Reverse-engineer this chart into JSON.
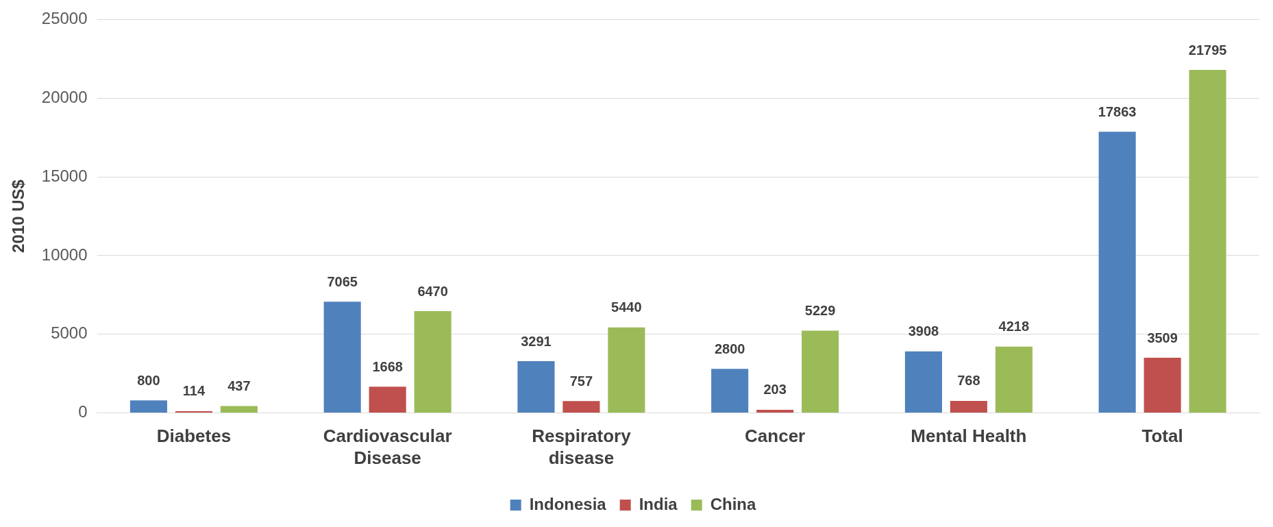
{
  "chart_data": {
    "type": "bar",
    "ylabel": "2010 US$",
    "categories": [
      "Diabetes",
      "Cardiovascular Disease",
      "Respiratory disease",
      "Cancer",
      "Mental Health",
      "Total"
    ],
    "series": [
      {
        "name": "Indonesia",
        "color": "#4f81bd",
        "values": [
          800,
          7065,
          3291,
          2800,
          3908,
          17863
        ]
      },
      {
        "name": "India",
        "color": "#c0504d",
        "values": [
          114,
          1668,
          757,
          203,
          768,
          3509
        ]
      },
      {
        "name": "China",
        "color": "#9bbb59",
        "values": [
          437,
          6470,
          5440,
          5229,
          4218,
          21795
        ]
      }
    ],
    "ylim": [
      0,
      25000
    ],
    "yticks": [
      0,
      5000,
      10000,
      15000,
      20000,
      25000
    ],
    "grid": "y",
    "legend": "bottom",
    "data_labels": true
  }
}
